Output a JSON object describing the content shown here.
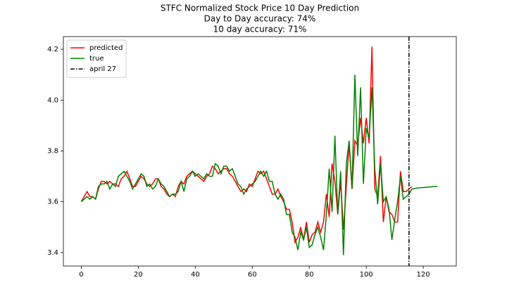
{
  "chart_data": {
    "type": "line",
    "title": [
      "STFC Normalized Stock Price 10 Day Prediction",
      "Day to Day accuracy: 74%",
      "10 day accuracy: 71%"
    ],
    "x": [
      0,
      1,
      2,
      3,
      4,
      5,
      6,
      7,
      8,
      9,
      10,
      11,
      12,
      13,
      14,
      15,
      16,
      17,
      18,
      19,
      20,
      21,
      22,
      23,
      24,
      25,
      26,
      27,
      28,
      29,
      30,
      31,
      32,
      33,
      34,
      35,
      36,
      37,
      38,
      39,
      40,
      41,
      42,
      43,
      44,
      45,
      46,
      47,
      48,
      49,
      50,
      51,
      52,
      53,
      54,
      55,
      56,
      57,
      58,
      59,
      60,
      61,
      62,
      63,
      64,
      65,
      66,
      67,
      68,
      69,
      70,
      71,
      72,
      73,
      74,
      75,
      76,
      77,
      78,
      79,
      80,
      81,
      82,
      83,
      84,
      85,
      86,
      87,
      88,
      89,
      90,
      91,
      92,
      93,
      94,
      95,
      96,
      97,
      98,
      99,
      100,
      101,
      102,
      103,
      104,
      105,
      106,
      107,
      108,
      109,
      110,
      111,
      112,
      113,
      114,
      115,
      116,
      117,
      118,
      119,
      120,
      121,
      122,
      123,
      124,
      125
    ],
    "series": [
      {
        "name": "predicted",
        "color": "#ff0000",
        "values": [
          3.6,
          3.62,
          3.64,
          3.62,
          3.62,
          3.61,
          3.65,
          3.68,
          3.68,
          3.67,
          3.68,
          3.67,
          3.67,
          3.66,
          3.69,
          3.7,
          3.72,
          3.69,
          3.66,
          3.66,
          3.68,
          3.7,
          3.69,
          3.67,
          3.66,
          3.67,
          3.69,
          3.69,
          3.66,
          3.65,
          3.63,
          3.62,
          3.63,
          3.62,
          3.66,
          3.68,
          3.67,
          3.7,
          3.71,
          3.72,
          3.71,
          3.7,
          3.69,
          3.68,
          3.7,
          3.71,
          3.74,
          3.73,
          3.71,
          3.72,
          3.73,
          3.73,
          3.71,
          3.7,
          3.68,
          3.66,
          3.64,
          3.65,
          3.64,
          3.67,
          3.66,
          3.69,
          3.72,
          3.71,
          3.72,
          3.69,
          3.66,
          3.63,
          3.63,
          3.65,
          3.62,
          3.6,
          3.57,
          3.57,
          3.52,
          3.44,
          3.46,
          3.5,
          3.45,
          3.52,
          3.44,
          3.47,
          3.48,
          3.52,
          3.48,
          3.52,
          3.63,
          3.54,
          3.75,
          3.68,
          3.55,
          3.68,
          3.49,
          3.66,
          3.83,
          3.65,
          3.84,
          3.82,
          3.93,
          3.83,
          3.93,
          3.83,
          4.21,
          3.65,
          3.62,
          3.78,
          3.52,
          3.62,
          3.56,
          3.55,
          3.52,
          3.52,
          3.72,
          3.64,
          3.64,
          3.65,
          3.66,
          null,
          null,
          null,
          null,
          null,
          null,
          null,
          null,
          null
        ]
      },
      {
        "name": "true",
        "color": "#008000",
        "values": [
          3.6,
          3.61,
          3.62,
          3.61,
          3.62,
          3.61,
          3.66,
          3.67,
          3.67,
          3.68,
          3.65,
          3.67,
          3.66,
          3.7,
          3.71,
          3.72,
          3.7,
          3.68,
          3.65,
          3.67,
          3.69,
          3.71,
          3.7,
          3.66,
          3.67,
          3.65,
          3.66,
          3.69,
          3.67,
          3.66,
          3.64,
          3.62,
          3.63,
          3.63,
          3.64,
          3.68,
          3.64,
          3.69,
          3.7,
          3.72,
          3.7,
          3.71,
          3.7,
          3.69,
          3.71,
          3.7,
          3.7,
          3.75,
          3.74,
          3.71,
          3.74,
          3.74,
          3.72,
          3.73,
          3.7,
          3.67,
          3.66,
          3.63,
          3.65,
          3.66,
          3.67,
          3.68,
          3.7,
          3.72,
          3.7,
          3.72,
          3.68,
          3.68,
          3.63,
          3.61,
          3.63,
          3.61,
          3.55,
          3.55,
          3.48,
          3.46,
          3.41,
          3.48,
          3.45,
          3.5,
          3.42,
          3.43,
          3.47,
          3.5,
          3.46,
          3.41,
          3.55,
          3.73,
          3.56,
          3.86,
          3.55,
          3.72,
          3.39,
          3.75,
          3.84,
          3.65,
          4.1,
          3.78,
          4.05,
          3.67,
          3.89,
          3.85,
          4.05,
          3.73,
          3.59,
          3.75,
          3.6,
          3.62,
          3.57,
          3.45,
          3.53,
          3.6,
          3.7,
          3.61,
          3.62,
          3.63,
          3.65,
          3.652,
          3.654,
          3.655,
          3.656,
          3.657,
          3.658,
          3.659,
          3.66,
          3.66
        ]
      }
    ],
    "vline": {
      "x": 115,
      "name": "april 27",
      "color": "#000000"
    },
    "xlim": [
      -6.3,
      131.6
    ],
    "ylim": [
      3.347,
      4.25
    ],
    "xticks": [
      0,
      20,
      40,
      60,
      80,
      100,
      120
    ],
    "yticks": [
      3.4,
      3.6,
      3.8,
      {
        "value": 4,
        "label": "4.0"
      },
      4.2
    ],
    "legend": "upper left"
  }
}
